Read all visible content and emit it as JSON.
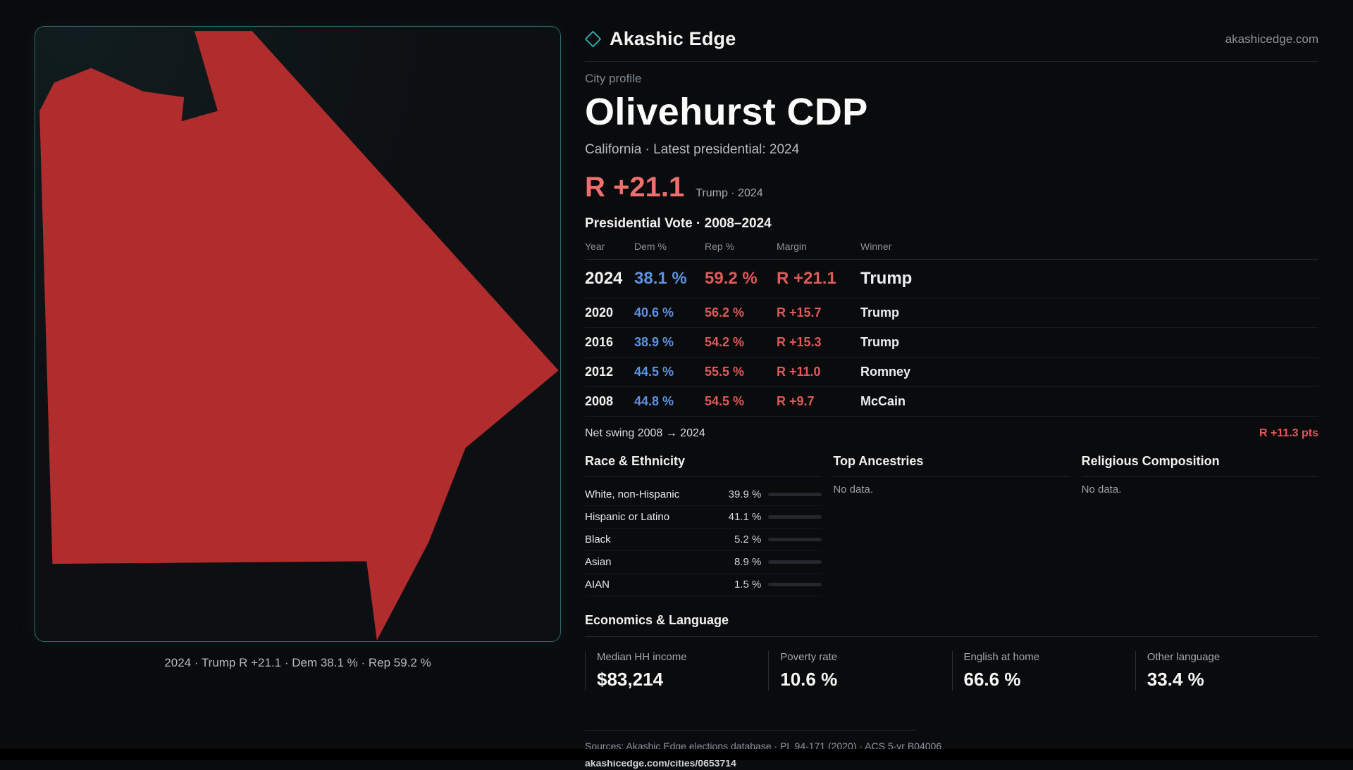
{
  "brand": {
    "name": "Akashic Edge",
    "domain": "akashicedge.com",
    "accent": "#2fa8a8"
  },
  "map": {
    "caption": "2024 · Trump R +21.1 · Dem 38.1 % · Rep 59.2 %",
    "shape_color": "#b12c2c",
    "border_color": "#2a6c6c"
  },
  "profile": {
    "eyebrow": "City profile",
    "title": "Olivehurst CDP",
    "subtitle": "California · Latest presidential: 2024",
    "headline_margin": "R +21.1",
    "headline_note": "Trump · 2024",
    "margin_color": "#ef6e6e",
    "dem_color": "#5d92e0",
    "rep_color": "#df5a5a"
  },
  "vote_table": {
    "title": "Presidential Vote · 2008–2024",
    "columns": [
      "Year",
      "Dem %",
      "Rep %",
      "Margin",
      "Winner"
    ],
    "rows": [
      {
        "year": "2024",
        "dem": "38.1 %",
        "rep": "59.2 %",
        "margin": "R +21.1",
        "winner": "Trump"
      },
      {
        "year": "2020",
        "dem": "40.6 %",
        "rep": "56.2 %",
        "margin": "R +15.7",
        "winner": "Trump"
      },
      {
        "year": "2016",
        "dem": "38.9 %",
        "rep": "54.2 %",
        "margin": "R +15.3",
        "winner": "Trump"
      },
      {
        "year": "2012",
        "dem": "44.5 %",
        "rep": "55.5 %",
        "margin": "R +11.0",
        "winner": "Romney"
      },
      {
        "year": "2008",
        "dem": "44.8 %",
        "rep": "54.5 %",
        "margin": "R +9.7",
        "winner": "McCain"
      }
    ]
  },
  "net_swing": {
    "label": "Net swing 2008 → 2024",
    "value": "R +11.3 pts"
  },
  "demographics": {
    "race": {
      "title": "Race & Ethnicity",
      "rows": [
        {
          "label": "White, non-Hispanic",
          "value": "39.9 %",
          "pct": 39.9,
          "color": "#b9bec4"
        },
        {
          "label": "Hispanic or Latino",
          "value": "41.1 %",
          "pct": 41.1,
          "color": "#d9a13a"
        },
        {
          "label": "Black",
          "value": "5.2 %",
          "pct": 5.2,
          "color": "#5b6fe8"
        },
        {
          "label": "Asian",
          "value": "8.9 %",
          "pct": 8.9,
          "color": "#2fbf9f"
        },
        {
          "label": "AIAN",
          "value": "1.5 %",
          "pct": 1.5,
          "color": "#9a9fa5"
        }
      ]
    },
    "ancestries": {
      "title": "Top Ancestries",
      "empty": "No data."
    },
    "religion": {
      "title": "Religious Composition",
      "empty": "No data."
    }
  },
  "economics": {
    "title": "Economics & Language",
    "stats": [
      {
        "label": "Median HH income",
        "value": "$83,214"
      },
      {
        "label": "Poverty rate",
        "value": "10.6 %"
      },
      {
        "label": "English at home",
        "value": "66.6 %"
      },
      {
        "label": "Other language",
        "value": "33.4 %"
      }
    ]
  },
  "footer": {
    "sources": "Sources: Akashic Edge elections database · PL 94-171 (2020) · ACS 5-yr B04006",
    "permalink": "akashicedge.com/cities/0653714"
  }
}
